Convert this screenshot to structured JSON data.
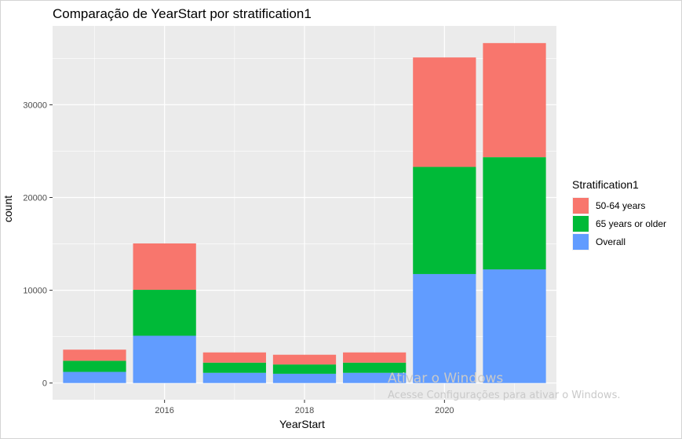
{
  "chart_data": {
    "type": "bar",
    "stacked": true,
    "title": "Comparação de YearStart por stratification1",
    "xlabel": "YearStart",
    "ylabel": "count",
    "x": [
      2015,
      2016,
      2017,
      2018,
      2019,
      2020,
      2021
    ],
    "x_ticks": [
      "2016",
      "2018",
      "2020"
    ],
    "y_ticks": [
      "0",
      "10000",
      "20000",
      "30000"
    ],
    "xlim": [
      2014.4,
      2021.6
    ],
    "ylim": [
      -1800,
      38500
    ],
    "legend_title": "Stratification1",
    "legend_position": "right",
    "grid": true,
    "series": [
      {
        "name": "50-64 years",
        "color": "#F8766D",
        "values": [
          1200,
          5000,
          1100,
          1050,
          1100,
          11800,
          12300
        ]
      },
      {
        "name": "65 years or older",
        "color": "#00BA38",
        "values": [
          1200,
          4950,
          1100,
          1000,
          1100,
          11550,
          12100
        ]
      },
      {
        "name": "Overall",
        "color": "#619CFF",
        "values": [
          1200,
          5100,
          1100,
          1000,
          1100,
          11750,
          12250
        ]
      }
    ],
    "stack_order_bottom_to_top": [
      "Overall",
      "65 years or older",
      "50-64 years"
    ],
    "panel_background": "#EBEBEB",
    "grid_color": "#FFFFFF"
  },
  "watermark": {
    "line1": "Ativar o Windows",
    "line2": "Acesse Configurações para ativar o Windows."
  }
}
